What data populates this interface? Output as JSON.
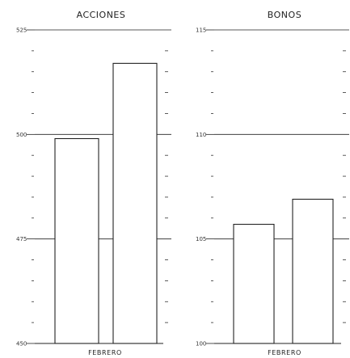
{
  "chart_data": [
    {
      "type": "bar",
      "title": "ACCIONES",
      "xlabel": "FEBRERO",
      "ylabel": "",
      "ylim": [
        450,
        525
      ],
      "yticks": [
        450,
        475,
        500,
        525
      ],
      "ytick_labels": [
        "450",
        "475",
        "500",
        "525"
      ],
      "grid": true,
      "values": [
        499,
        517
      ]
    },
    {
      "type": "bar",
      "title": "BONOS",
      "xlabel": "FEBRERO",
      "ylabel": "",
      "ylim": [
        100,
        115
      ],
      "yticks": [
        100,
        105,
        110,
        115
      ],
      "ytick_labels": [
        "100",
        "105",
        "110",
        "115"
      ],
      "grid": true,
      "values": [
        105.7,
        106.9
      ]
    }
  ]
}
